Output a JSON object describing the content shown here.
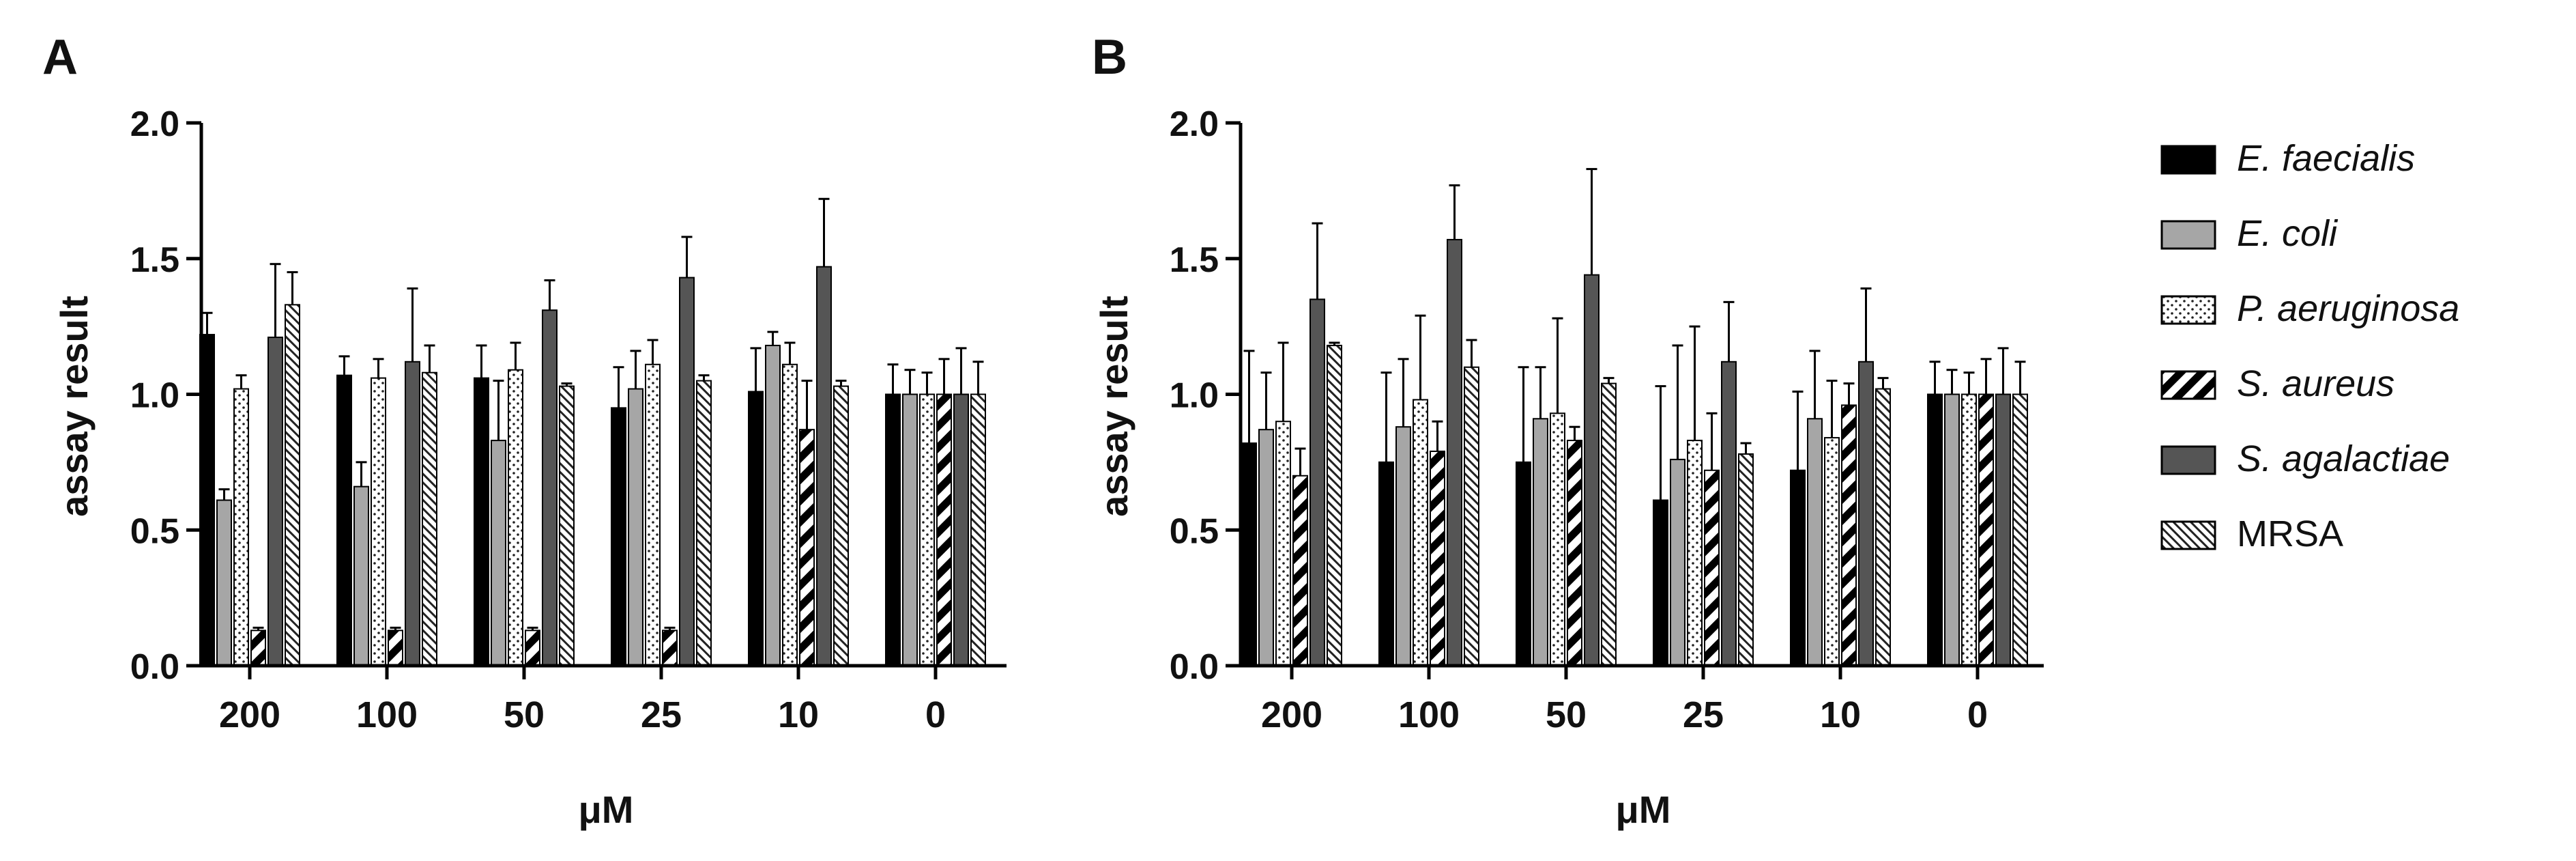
{
  "figure": {
    "legend_title": ""
  },
  "legend": [
    {
      "label": "E. faecialis",
      "italic": true,
      "fill": "#000000",
      "pattern": "solid"
    },
    {
      "label": "E. coli",
      "italic": true,
      "fill": "#a6a6a6",
      "pattern": "solid"
    },
    {
      "label": "P. aeruginosa",
      "italic": true,
      "fill": "#ffffff",
      "pattern": "dots"
    },
    {
      "label": "S. aureus",
      "italic": true,
      "fill": "#ffffff",
      "pattern": "bold-stripes"
    },
    {
      "label": "S. agalactiae",
      "italic": true,
      "fill": "#555555",
      "pattern": "solid"
    },
    {
      "label": "MRSA",
      "italic": false,
      "fill": "#ffffff",
      "pattern": "fine-stripes"
    }
  ],
  "chart_data": [
    {
      "type": "bar",
      "panel": "A",
      "title": "",
      "xlabel": "μM",
      "ylabel": "assay result",
      "ylim": [
        0,
        2.0
      ],
      "yticks": [
        "0.0",
        "0.5",
        "1.0",
        "1.5",
        "2.0"
      ],
      "ytick_values": [
        0,
        0.5,
        1.0,
        1.5,
        2.0
      ],
      "categories": [
        "200",
        "100",
        "50",
        "25",
        "10",
        "0"
      ],
      "series": [
        {
          "name": "E. faecialis",
          "values": [
            1.22,
            1.07,
            1.06,
            0.95,
            1.01,
            1.0
          ],
          "errors": [
            0.08,
            0.07,
            0.12,
            0.15,
            0.16,
            0.11
          ]
        },
        {
          "name": "E. coli",
          "values": [
            0.61,
            0.66,
            0.83,
            1.02,
            1.18,
            1.0
          ],
          "errors": [
            0.04,
            0.09,
            0.22,
            0.14,
            0.05,
            0.09
          ]
        },
        {
          "name": "P. aeruginosa",
          "values": [
            1.02,
            1.06,
            1.09,
            1.11,
            1.11,
            1.0
          ],
          "errors": [
            0.05,
            0.07,
            0.1,
            0.09,
            0.08,
            0.08
          ]
        },
        {
          "name": "S. aureus",
          "values": [
            0.13,
            0.13,
            0.13,
            0.13,
            0.87,
            1.0
          ],
          "errors": [
            0.01,
            0.01,
            0.01,
            0.01,
            0.18,
            0.13
          ]
        },
        {
          "name": "S. agalactiae",
          "values": [
            1.21,
            1.12,
            1.31,
            1.43,
            1.47,
            1.0
          ],
          "errors": [
            0.27,
            0.27,
            0.11,
            0.15,
            0.25,
            0.17
          ]
        },
        {
          "name": "MRSA",
          "values": [
            1.33,
            1.08,
            1.03,
            1.05,
            1.03,
            1.0
          ],
          "errors": [
            0.12,
            0.1,
            0.01,
            0.02,
            0.02,
            0.12
          ]
        }
      ]
    },
    {
      "type": "bar",
      "panel": "B",
      "title": "",
      "xlabel": "μM",
      "ylabel": "assay result",
      "ylim": [
        0,
        2.0
      ],
      "yticks": [
        "0.0",
        "0.5",
        "1.0",
        "1.5",
        "2.0"
      ],
      "ytick_values": [
        0,
        0.5,
        1.0,
        1.5,
        2.0
      ],
      "categories": [
        "200",
        "100",
        "50",
        "25",
        "10",
        "0"
      ],
      "series": [
        {
          "name": "E. faecialis",
          "values": [
            0.82,
            0.75,
            0.75,
            0.61,
            0.72,
            1.0
          ],
          "errors": [
            0.34,
            0.33,
            0.35,
            0.42,
            0.29,
            0.12
          ]
        },
        {
          "name": "E. coli",
          "values": [
            0.87,
            0.88,
            0.91,
            0.76,
            0.91,
            1.0
          ],
          "errors": [
            0.21,
            0.25,
            0.19,
            0.42,
            0.25,
            0.09
          ]
        },
        {
          "name": "P. aeruginosa",
          "values": [
            0.9,
            0.98,
            0.93,
            0.83,
            0.84,
            1.0
          ],
          "errors": [
            0.29,
            0.31,
            0.35,
            0.42,
            0.21,
            0.08
          ]
        },
        {
          "name": "S. aureus",
          "values": [
            0.7,
            0.79,
            0.83,
            0.72,
            0.96,
            1.0
          ],
          "errors": [
            0.1,
            0.11,
            0.05,
            0.21,
            0.08,
            0.13
          ]
        },
        {
          "name": "S. agalactiae",
          "values": [
            1.35,
            1.57,
            1.44,
            1.12,
            1.12,
            1.0
          ],
          "errors": [
            0.28,
            0.2,
            0.39,
            0.22,
            0.27,
            0.17
          ]
        },
        {
          "name": "MRSA",
          "values": [
            1.18,
            1.1,
            1.04,
            0.78,
            1.02,
            1.0
          ],
          "errors": [
            0.01,
            0.1,
            0.02,
            0.04,
            0.04,
            0.12
          ]
        }
      ]
    }
  ]
}
